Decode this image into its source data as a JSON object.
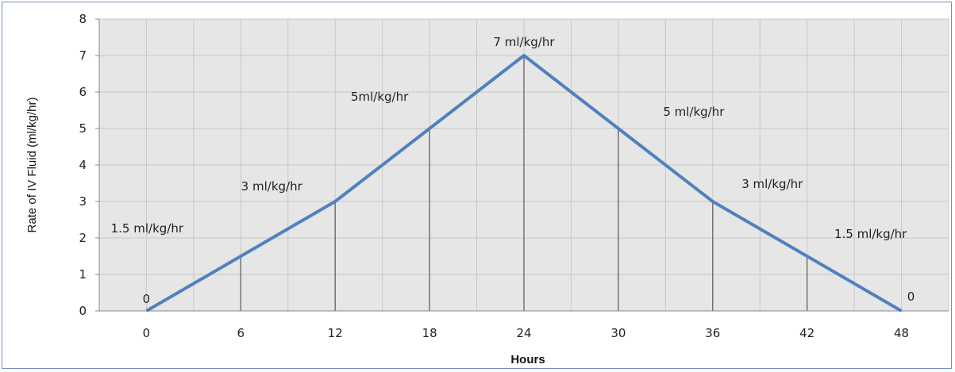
{
  "chart_data": {
    "type": "line",
    "title": "",
    "xlabel": "Hours",
    "ylabel": "Rate of IV Fluid (ml/kg/hr)",
    "x": [
      0,
      6,
      12,
      18,
      24,
      30,
      36,
      42,
      48
    ],
    "xlim": [
      -3,
      51
    ],
    "ylim": [
      0,
      8
    ],
    "y_ticks": [
      0,
      1,
      2,
      3,
      4,
      5,
      6,
      7,
      8
    ],
    "x_ticks": [
      0,
      6,
      12,
      18,
      24,
      30,
      36,
      42,
      48
    ],
    "grid": true,
    "series": [
      {
        "values": [
          0,
          1.5,
          3,
          5,
          7,
          5,
          3,
          1.5,
          0
        ]
      }
    ],
    "data_labels": [
      "0",
      "1.5 ml/kg/hr",
      "3 ml/kg/hr",
      "5ml/kg/hr",
      "7 ml/kg/hr",
      "5 ml/kg/hr",
      "3 ml/kg/hr",
      "1.5 ml/kg/hr",
      "0"
    ],
    "colors": {
      "line": "#4f81bd",
      "grid": "#c8c8c8",
      "plot_bg": "#e6e6e6",
      "drop_lines": "#6b6b6b"
    }
  }
}
